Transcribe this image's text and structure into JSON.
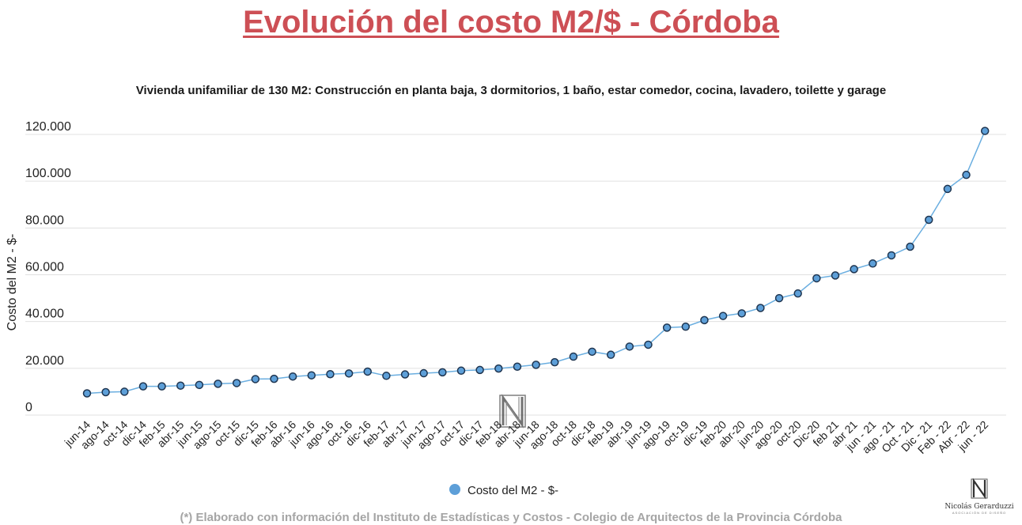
{
  "page": {
    "title": "Evolución del costo M2/$ - Córdoba",
    "footnote": "(*) Elaborado con información del Instituto de Estadísticas y Costos - Colegio de Arquitectos de la Provincia Córdoba"
  },
  "branding": {
    "name": "Nicolás Gerarduzzi",
    "tagline": "ASOCIACIÓN DE DISEÑO"
  },
  "colors": {
    "title": "#cd4f55",
    "line": "#6aaee0",
    "marker_fill": "#5d9fd8",
    "marker_stroke": "#1f3550"
  },
  "chart_data": {
    "type": "line",
    "title": "Vivienda unifamiliar de 130 M2: Construcción en planta baja, 3 dormitorios, 1 baño, estar comedor, cocina, lavadero, toilette y garage",
    "xlabel": "",
    "ylabel": "Costo del M2 - $-",
    "ylim": [
      0,
      120000
    ],
    "yticks": [
      0,
      20000,
      40000,
      60000,
      80000,
      100000,
      120000
    ],
    "ytick_labels": [
      "0",
      "20.000",
      "40.000",
      "60.000",
      "80.000",
      "100.000",
      "120.000"
    ],
    "grid": true,
    "legend_position": "bottom",
    "categories": [
      "jun-14",
      "ago-14",
      "oct-14",
      "dic-14",
      "feb-15",
      "abr-15",
      "jun-15",
      "ago-15",
      "oct-15",
      "dic-15",
      "feb-16",
      "abr-16",
      "jun-16",
      "ago-16",
      "oct-16",
      "dic-16",
      "feb-17",
      "abr-17",
      "jun-17",
      "ago-17",
      "oct-17",
      "dic-17",
      "feb-18",
      "abr-18",
      "jun-18",
      "ago-18",
      "oct-18",
      "dic-18",
      "feb-19",
      "abr-19",
      "jun-19",
      "ago-19",
      "oct-19",
      "dic-19",
      "feb-20",
      "abr-20",
      "jun-20",
      "ago-20",
      "oct-20",
      "Dic-20",
      "feb 21",
      "abr 21",
      "jun - 21",
      "ago - 21",
      "Oct - 21",
      "Dic - 21",
      "Feb - 22",
      "Abr - 22",
      "jun - 22"
    ],
    "series": [
      {
        "name": "Costo del M2 - $-",
        "values": [
          9300,
          9800,
          10000,
          12300,
          12300,
          12600,
          12900,
          13400,
          13700,
          15400,
          15500,
          16500,
          17000,
          17500,
          17800,
          18600,
          16800,
          17400,
          17900,
          18300,
          19000,
          19300,
          19900,
          20700,
          21500,
          22600,
          25000,
          27100,
          25800,
          29300,
          30100,
          37400,
          37800,
          40600,
          42400,
          43500,
          45800,
          50000,
          52000,
          58500,
          59700,
          62400,
          64800,
          68300,
          72000,
          83500,
          96700,
          102700,
          121500
        ]
      }
    ]
  }
}
